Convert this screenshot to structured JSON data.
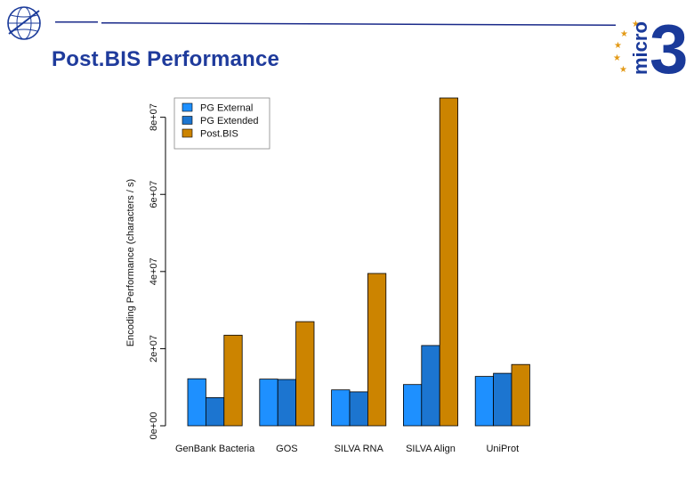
{
  "slide": {
    "title": "Post.BIS Performance",
    "brand_logo_text": "micro",
    "brand_logo_number": "3",
    "header_logo_icon": "globe-emblem-icon",
    "star_icon": "star-icon"
  },
  "colors": {
    "title": "#1f3b9c",
    "rule": "#1a2a8a",
    "pg_external": "#1e90ff",
    "pg_extended": "#1c75d0",
    "postbis": "#cc8400",
    "stars": "#e39a17",
    "logo": "#1a3a9a"
  },
  "chart_data": {
    "type": "bar",
    "title": "",
    "xlabel": "",
    "ylabel": "Encoding Performance (characters / s)",
    "ylim": [
      0,
      85000000
    ],
    "yticks": [
      0,
      20000000,
      40000000,
      60000000,
      80000000
    ],
    "ytick_labels": [
      "0e+00",
      "2e+07",
      "4e+07",
      "6e+07",
      "8e+07"
    ],
    "categories": [
      "GenBank Bacteria",
      "GOS",
      "SILVA RNA",
      "SILVA Align",
      "UniProt"
    ],
    "series": [
      {
        "name": "PG External",
        "color": "#1e90ff",
        "values": [
          12200000,
          12100000,
          9300000,
          10700000,
          12800000
        ]
      },
      {
        "name": "PG Extended",
        "color": "#1c75d0",
        "values": [
          7300000,
          12000000,
          8800000,
          20800000,
          13600000
        ]
      },
      {
        "name": "Post.BIS",
        "color": "#cc8400",
        "values": [
          23500000,
          27000000,
          39500000,
          85000000,
          15900000
        ]
      }
    ],
    "legend_position": "top-left",
    "grid": false
  }
}
